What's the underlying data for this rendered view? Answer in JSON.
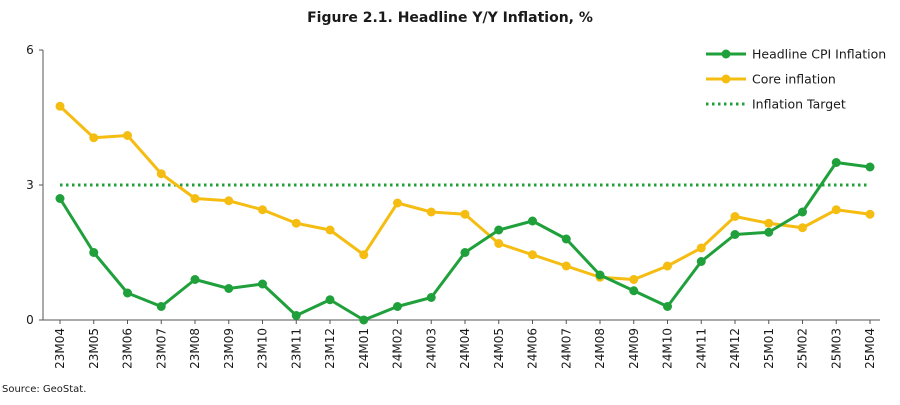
{
  "chart_data": {
    "type": "line",
    "title": "Figure 2.1. Headline Y/Y Inflation, %",
    "xlabel": "",
    "ylabel": "",
    "categories": [
      "23M04",
      "23M05",
      "23M06",
      "23M07",
      "23M08",
      "23M09",
      "23M10",
      "23M11",
      "23M12",
      "24M01",
      "24M02",
      "24M03",
      "24M04",
      "24M05",
      "24M06",
      "24M07",
      "24M08",
      "24M09",
      "24M10",
      "24M11",
      "24M12",
      "25M01",
      "25M02",
      "25M03",
      "25M04"
    ],
    "ylim": [
      0,
      6
    ],
    "yticks": [
      "0",
      "3",
      "6"
    ],
    "grid": false,
    "legend_position": "top-right",
    "series": [
      {
        "name": "Headline CPI Inflation",
        "color": "#1fa03b",
        "style": "solid-markers",
        "values": [
          2.7,
          1.5,
          0.6,
          0.3,
          0.9,
          0.7,
          0.8,
          0.1,
          0.45,
          0.0,
          0.3,
          0.5,
          1.5,
          2.0,
          2.2,
          1.8,
          1.0,
          0.65,
          0.3,
          1.3,
          1.9,
          1.95,
          2.4,
          3.5,
          3.4
        ]
      },
      {
        "name": "Core inflation",
        "color": "#f5bd12",
        "style": "solid-markers",
        "values": [
          4.75,
          4.05,
          4.1,
          3.25,
          2.7,
          2.65,
          2.45,
          2.15,
          2.0,
          1.45,
          2.6,
          2.4,
          2.35,
          1.7,
          1.45,
          1.2,
          0.95,
          0.9,
          1.2,
          1.6,
          2.3,
          2.15,
          2.05,
          2.45,
          2.35
        ]
      },
      {
        "name": "Inflation Target",
        "color": "#1fa03b",
        "style": "dotted",
        "values": [
          3,
          3,
          3,
          3,
          3,
          3,
          3,
          3,
          3,
          3,
          3,
          3,
          3,
          3,
          3,
          3,
          3,
          3,
          3,
          3,
          3,
          3,
          3,
          3,
          3
        ]
      }
    ]
  },
  "source_note": "Source: GeoStat."
}
